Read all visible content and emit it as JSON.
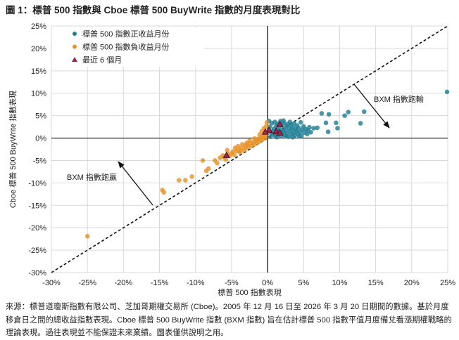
{
  "title": "圖 1：標普 500 指數與 Cboe 標普 500 BuyWrite 指數的月度表現對比",
  "footnote": "來源：標普道瓊斯指數有限公司、芝加哥期權交易所 (Cboe)。2005 年 12 月 16 日至 2026 年 3 月 20 日期間的數據。基於月度移倉日之間的總收益指數表現。Cboe 標普 500 BuyWrite 指數 (BXM 指數) 旨在估計標普 500 指數平值月度備兌看漲期權戰略的理論表現。過往表現並不能保證未來業績。圖表僅供說明之用。",
  "chart_data": {
    "type": "scatter",
    "xlabel": "標普 500 指數表現",
    "ylabel": "Cboe 標普 500 BuyWrite 指數表現",
    "xlim": [
      -30,
      25
    ],
    "ylim": [
      -30,
      25
    ],
    "xticks": [
      "-30%",
      "-25%",
      "-20%",
      "-15%",
      "-10%",
      "-5%",
      "0%",
      "5%",
      "10%",
      "15%",
      "20%",
      "25%"
    ],
    "yticks": [
      "25%",
      "20%",
      "15%",
      "10%",
      "5%",
      "0%",
      "-5%",
      "-10%",
      "-15%",
      "-20%",
      "-25%",
      "-30%"
    ],
    "grid": true,
    "legend_position": "top-left",
    "reference_line": "y = x (dashed)",
    "annotations": [
      "BXM 指數跑贏",
      "BXM 指數跑輸"
    ],
    "series": [
      {
        "name": "標普 500 指數正收益月份",
        "color": "#1f7f96",
        "marker": "circle",
        "points": [
          [
            24.9,
            10.3
          ],
          [
            13.4,
            5.9
          ],
          [
            11.2,
            5.8
          ],
          [
            10.7,
            5
          ],
          [
            12.9,
            3.3
          ],
          [
            7.5,
            5.5
          ],
          [
            8.5,
            5.3
          ],
          [
            8.1,
            3.4
          ],
          [
            9.5,
            3.4
          ],
          [
            9.7,
            2.2
          ],
          [
            8.4,
            1.4
          ],
          [
            6.9,
            2.3
          ],
          [
            6.4,
            2.2
          ],
          [
            0.3,
            2.5
          ],
          [
            0.5,
            1.2
          ],
          [
            0.6,
            3.3
          ],
          [
            0.8,
            0.8
          ],
          [
            0.9,
            2.1
          ],
          [
            1,
            3.6
          ],
          [
            1.1,
            0.5
          ],
          [
            1.2,
            2.7
          ],
          [
            1.3,
            1.9
          ],
          [
            1.4,
            3.2
          ],
          [
            1.5,
            0.9
          ],
          [
            1.6,
            2.4
          ],
          [
            1.7,
            1.6
          ],
          [
            1.8,
            3.8
          ],
          [
            1.9,
            0.4
          ],
          [
            2,
            2.9
          ],
          [
            2.1,
            1.3
          ],
          [
            2.2,
            2
          ],
          [
            2.3,
            3.4
          ],
          [
            2.4,
            0.7
          ],
          [
            2.5,
            1.7
          ],
          [
            2.6,
            2.6
          ],
          [
            2.7,
            1.1
          ],
          [
            2.8,
            3.1
          ],
          [
            2.9,
            0.3
          ],
          [
            3,
            2.2
          ],
          [
            3.1,
            1.5
          ],
          [
            3.2,
            2.9
          ],
          [
            3.3,
            0.8
          ],
          [
            3.4,
            1.9
          ],
          [
            3.5,
            2.5
          ],
          [
            3.6,
            1.2
          ],
          [
            3.7,
            3.3
          ],
          [
            3.8,
            0.6
          ],
          [
            3.9,
            2
          ],
          [
            4,
            1.6
          ],
          [
            4.1,
            2.8
          ],
          [
            4.2,
            1
          ],
          [
            4.3,
            2.3
          ],
          [
            4.5,
            1.4
          ],
          [
            4.6,
            3.5
          ],
          [
            4.7,
            0.5
          ],
          [
            4.8,
            1.9
          ],
          [
            5,
            2.6
          ],
          [
            5.1,
            1.2
          ],
          [
            5.3,
            2
          ],
          [
            5.5,
            0.9
          ],
          [
            5.6,
            1.7
          ],
          [
            5.8,
            2.4
          ],
          [
            6,
            1.3
          ],
          [
            0.4,
            0.3
          ],
          [
            0.7,
            1.6
          ],
          [
            1.3,
            0.2
          ],
          [
            2.2,
            3.9
          ],
          [
            3.1,
            3.6
          ],
          [
            1.9,
            1.1
          ],
          [
            2.6,
            0.4
          ],
          [
            3.5,
            0.2
          ],
          [
            4.4,
            0.4
          ],
          [
            0.2,
            3.8
          ]
        ]
      },
      {
        "name": "標普 500 指數負收益月份",
        "color": "#e8932a",
        "marker": "circle",
        "points": [
          [
            -25,
            -21.9
          ],
          [
            -14.6,
            -11.6
          ],
          [
            -14.4,
            -12.1
          ],
          [
            -12.3,
            -9.4
          ],
          [
            -11.4,
            -9.4
          ],
          [
            -10.5,
            -8.6
          ],
          [
            -8.5,
            -7.3
          ],
          [
            -8.2,
            -6.8
          ],
          [
            -9,
            -5
          ],
          [
            -7.3,
            -5
          ],
          [
            -7,
            -5.6
          ],
          [
            -6.6,
            -4.4
          ],
          [
            -5.6,
            -2.7
          ],
          [
            -6,
            -4.3
          ],
          [
            -5.8,
            -4.8
          ],
          [
            -5.3,
            -4
          ],
          [
            -5,
            -3.4
          ],
          [
            -4.8,
            -3
          ],
          [
            -4.6,
            -3.8
          ],
          [
            -4.3,
            -2.9
          ],
          [
            -4,
            -2.6
          ],
          [
            -3.8,
            -3.2
          ],
          [
            -3.6,
            -2.2
          ],
          [
            -3.3,
            -2.7
          ],
          [
            -3.1,
            -1.8
          ],
          [
            -3,
            -2.3
          ],
          [
            -2.8,
            -1.5
          ],
          [
            -2.6,
            -2
          ],
          [
            -2.4,
            -1.2
          ],
          [
            -2.2,
            -1.7
          ],
          [
            -2,
            -0.9
          ],
          [
            -1.9,
            -1.4
          ],
          [
            -1.7,
            -0.6
          ],
          [
            -1.5,
            -1.1
          ],
          [
            -1.4,
            -0.3
          ],
          [
            -1.2,
            -0.8
          ],
          [
            -1,
            0.1
          ],
          [
            -0.9,
            -0.5
          ],
          [
            -0.7,
            0.4
          ],
          [
            -0.6,
            -0.2
          ],
          [
            -0.4,
            0.6
          ],
          [
            -0.3,
            0
          ],
          [
            -0.2,
            1
          ],
          [
            -0.1,
            3.5
          ],
          [
            -0.5,
            2.2
          ],
          [
            -1.1,
            0.8
          ],
          [
            -2.5,
            -0.6
          ],
          [
            -3.5,
            -1.4
          ],
          [
            -4.1,
            -1.8
          ],
          [
            -4.5,
            -2.2
          ],
          [
            -1.8,
            -0.1
          ],
          [
            -0.8,
            1.5
          ],
          [
            -5.5,
            -3.6
          ],
          [
            -6.2,
            -3.9
          ],
          [
            -3.9,
            -2.9
          ],
          [
            -2.9,
            -1.1
          ],
          [
            -1.3,
            -0.2
          ],
          [
            -0.2,
            2.6
          ]
        ]
      },
      {
        "name": "最近 6 個月",
        "color": "#a3234a",
        "marker": "triangle",
        "points": [
          [
            1.7,
            3
          ],
          [
            1.2,
            1.4
          ],
          [
            1.7,
            1.1
          ],
          [
            0.2,
            1.7
          ],
          [
            -0.3,
            1.3
          ],
          [
            -5.7,
            -3.9
          ]
        ]
      }
    ]
  }
}
